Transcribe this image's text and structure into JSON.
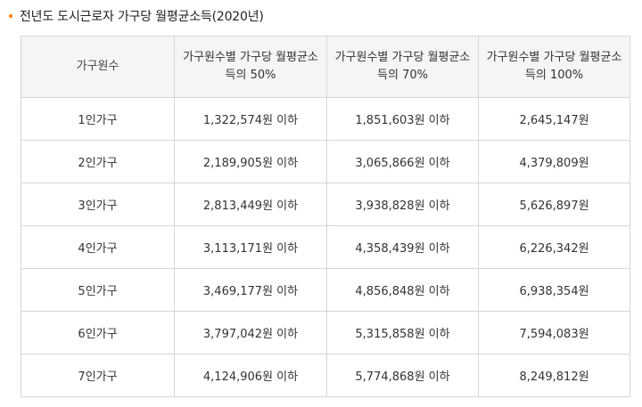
{
  "title": "전년도 도시근로자 가구당 월평균소득(2020년)",
  "accent_color": "#ff7a00",
  "table": {
    "headers": [
      [
        "가구원수"
      ],
      [
        "가구원수별 가구당 월평균소",
        "득의 50%"
      ],
      [
        "가구원수별 가구당 월평균소",
        "득의 70%"
      ],
      [
        "가구원수별 가구당 월평균소",
        "득의 100%"
      ]
    ],
    "rows": [
      [
        "1인가구",
        "1,322,574원 이하",
        "1,851,603원 이하",
        "2,645,147원"
      ],
      [
        "2인가구",
        "2,189,905원 이하",
        "3,065,866원 이하",
        "4,379,809원"
      ],
      [
        "3인가구",
        "2,813,449원 이하",
        "3,938,828원 이하",
        "5,626,897원"
      ],
      [
        "4인가구",
        "3,113,171원 이하",
        "4,358,439원 이하",
        "6,226,342원"
      ],
      [
        "5인가구",
        "3,469,177원 이하",
        "4,856,848원 이하",
        "6,938,354원"
      ],
      [
        "6인가구",
        "3,797,042원 이하",
        "5,315,858원 이하",
        "7,594,083원"
      ],
      [
        "7인가구",
        "4,124,906원 이하",
        "5,774,868원 이하",
        "8,249,812원"
      ]
    ]
  }
}
